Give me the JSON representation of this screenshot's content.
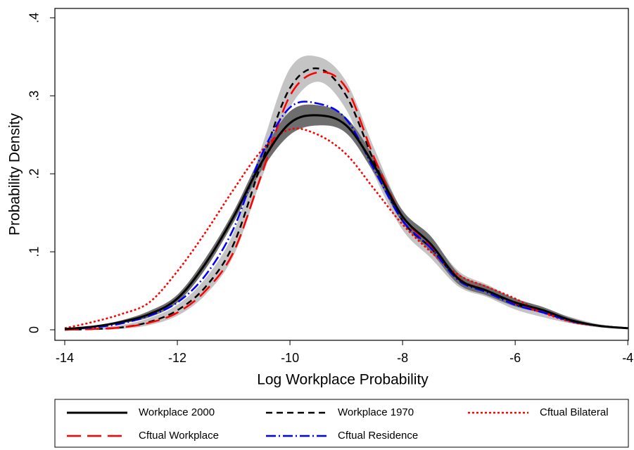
{
  "chart_data": {
    "type": "line",
    "x_label": "Log Workplace Probability",
    "y_label": "Probability Density",
    "x": [
      -14,
      -13.5,
      -13,
      -12.5,
      -12,
      -11.5,
      -11,
      -10.5,
      -10,
      -9.5,
      -9,
      -8.5,
      -8,
      -7.5,
      -7,
      -6.5,
      -6,
      -5.5,
      -5,
      -4.5,
      -4
    ],
    "xlim": [
      -14.175,
      -3.99
    ],
    "ylim": [
      -0.0135,
      0.412
    ],
    "xticks": [
      -14,
      -12,
      -10,
      -8,
      -6,
      -4
    ],
    "yticks": [
      {
        "value": 0,
        "label": "0"
      },
      {
        "value": 0.1,
        "label": ".1"
      },
      {
        "value": 0.2,
        "label": ".2"
      },
      {
        "value": 0.3,
        "label": ".3"
      },
      {
        "value": 0.4,
        "label": ".4"
      }
    ],
    "series": [
      {
        "name": "Workplace 2000",
        "color": "#000000",
        "style": "solid",
        "values": [
          0.001,
          0.004,
          0.01,
          0.02,
          0.04,
          0.085,
          0.145,
          0.215,
          0.265,
          0.275,
          0.262,
          0.21,
          0.145,
          0.11,
          0.065,
          0.05,
          0.035,
          0.025,
          0.012,
          0.005,
          0.002
        ],
        "ci_color": "#6e6e6e",
        "ci_upper": [
          0.002,
          0.005,
          0.012,
          0.024,
          0.045,
          0.092,
          0.152,
          0.225,
          0.28,
          0.288,
          0.272,
          0.22,
          0.153,
          0.12,
          0.072,
          0.056,
          0.04,
          0.029,
          0.015,
          0.006,
          0.003
        ],
        "ci_lower": [
          0,
          0.003,
          0.008,
          0.016,
          0.035,
          0.078,
          0.138,
          0.205,
          0.25,
          0.262,
          0.252,
          0.2,
          0.137,
          0.1,
          0.058,
          0.044,
          0.03,
          0.021,
          0.009,
          0.004,
          0.001
        ]
      },
      {
        "name": "Workplace 1970",
        "color": "#000000",
        "style": "dash",
        "values": [
          0,
          0.001,
          0.003,
          0.01,
          0.025,
          0.055,
          0.11,
          0.215,
          0.31,
          0.335,
          0.3,
          0.215,
          0.14,
          0.105,
          0.065,
          0.05,
          0.033,
          0.022,
          0.012,
          0.005,
          0.002
        ],
        "ci_color": "#c4c4c4",
        "ci_upper": [
          0.002,
          0.003,
          0.006,
          0.015,
          0.032,
          0.066,
          0.125,
          0.235,
          0.335,
          0.35,
          0.318,
          0.232,
          0.152,
          0.118,
          0.075,
          0.058,
          0.04,
          0.028,
          0.016,
          0.007,
          0.003
        ],
        "ci_lower": [
          0,
          0,
          0.001,
          0.006,
          0.018,
          0.045,
          0.095,
          0.195,
          0.285,
          0.318,
          0.282,
          0.198,
          0.128,
          0.092,
          0.055,
          0.042,
          0.026,
          0.016,
          0.008,
          0.003,
          0.001
        ]
      },
      {
        "name": "Cftual Bilateral",
        "color": "#ff0000",
        "style": "dot",
        "values": [
          0.002,
          0.01,
          0.02,
          0.035,
          0.075,
          0.125,
          0.18,
          0.23,
          0.257,
          0.25,
          0.225,
          0.18,
          0.135,
          0.1,
          0.07,
          0.055,
          0.04,
          0.022,
          0.01,
          0.005,
          0.002
        ]
      },
      {
        "name": "Cftual Workplace",
        "color": "#ff0000",
        "style": "longdash",
        "values": [
          0,
          0.001,
          0.003,
          0.009,
          0.022,
          0.05,
          0.1,
          0.2,
          0.3,
          0.33,
          0.31,
          0.22,
          0.145,
          0.108,
          0.066,
          0.05,
          0.034,
          0.022,
          0.012,
          0.005,
          0.002
        ]
      },
      {
        "name": "Cftual Residence",
        "color": "#0000ff",
        "style": "dashdot",
        "values": [
          0.001,
          0.003,
          0.008,
          0.018,
          0.035,
          0.07,
          0.13,
          0.225,
          0.285,
          0.29,
          0.27,
          0.205,
          0.14,
          0.105,
          0.063,
          0.048,
          0.032,
          0.022,
          0.011,
          0.005,
          0.002
        ]
      }
    ]
  }
}
